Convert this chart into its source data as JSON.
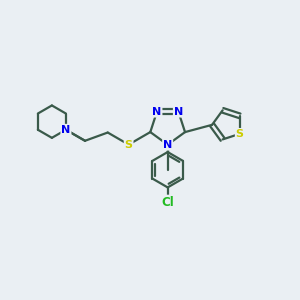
{
  "background_color": "#eaeff3",
  "bond_color": "#3a5a4a",
  "bond_width": 1.6,
  "atom_colors": {
    "N": "#0000ee",
    "S": "#cccc00",
    "Cl": "#22bb22",
    "C": "#3a5a4a"
  },
  "font_size": 8.5,
  "fig_size": [
    3.0,
    3.0
  ],
  "dpi": 100
}
